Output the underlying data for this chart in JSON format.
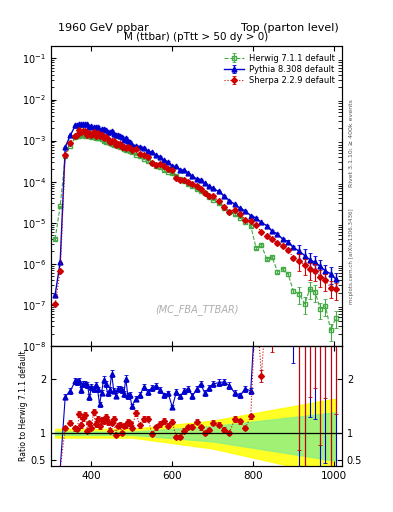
{
  "title_left": "1960 GeV ppbar",
  "title_right": "Top (parton level)",
  "plot_title": "M (ttbar) (pTtt > 50 dy > 0)",
  "watermark": "(MC_FBA_TTBAR)",
  "right_label_top": "Rivet 3.1.10; ≥ 400k events",
  "right_label_bottom": "mcplots.cern.ch [arXiv:1306.3436]",
  "ylabel_ratio": "Ratio to Herwig 7.1.1 default",
  "xlim": [
    300,
    1020
  ],
  "ylim_main": [
    1e-08,
    0.2
  ],
  "ylim_ratio": [
    0.4,
    2.6
  ],
  "herwig_color": "#44aa44",
  "pythia_color": "#0000cc",
  "sherpa_color": "#cc0000",
  "legend_entries": [
    "Herwig 7.1.1 default",
    "Pythia 8.308 default",
    "Sherpa 2.2.9 default"
  ]
}
